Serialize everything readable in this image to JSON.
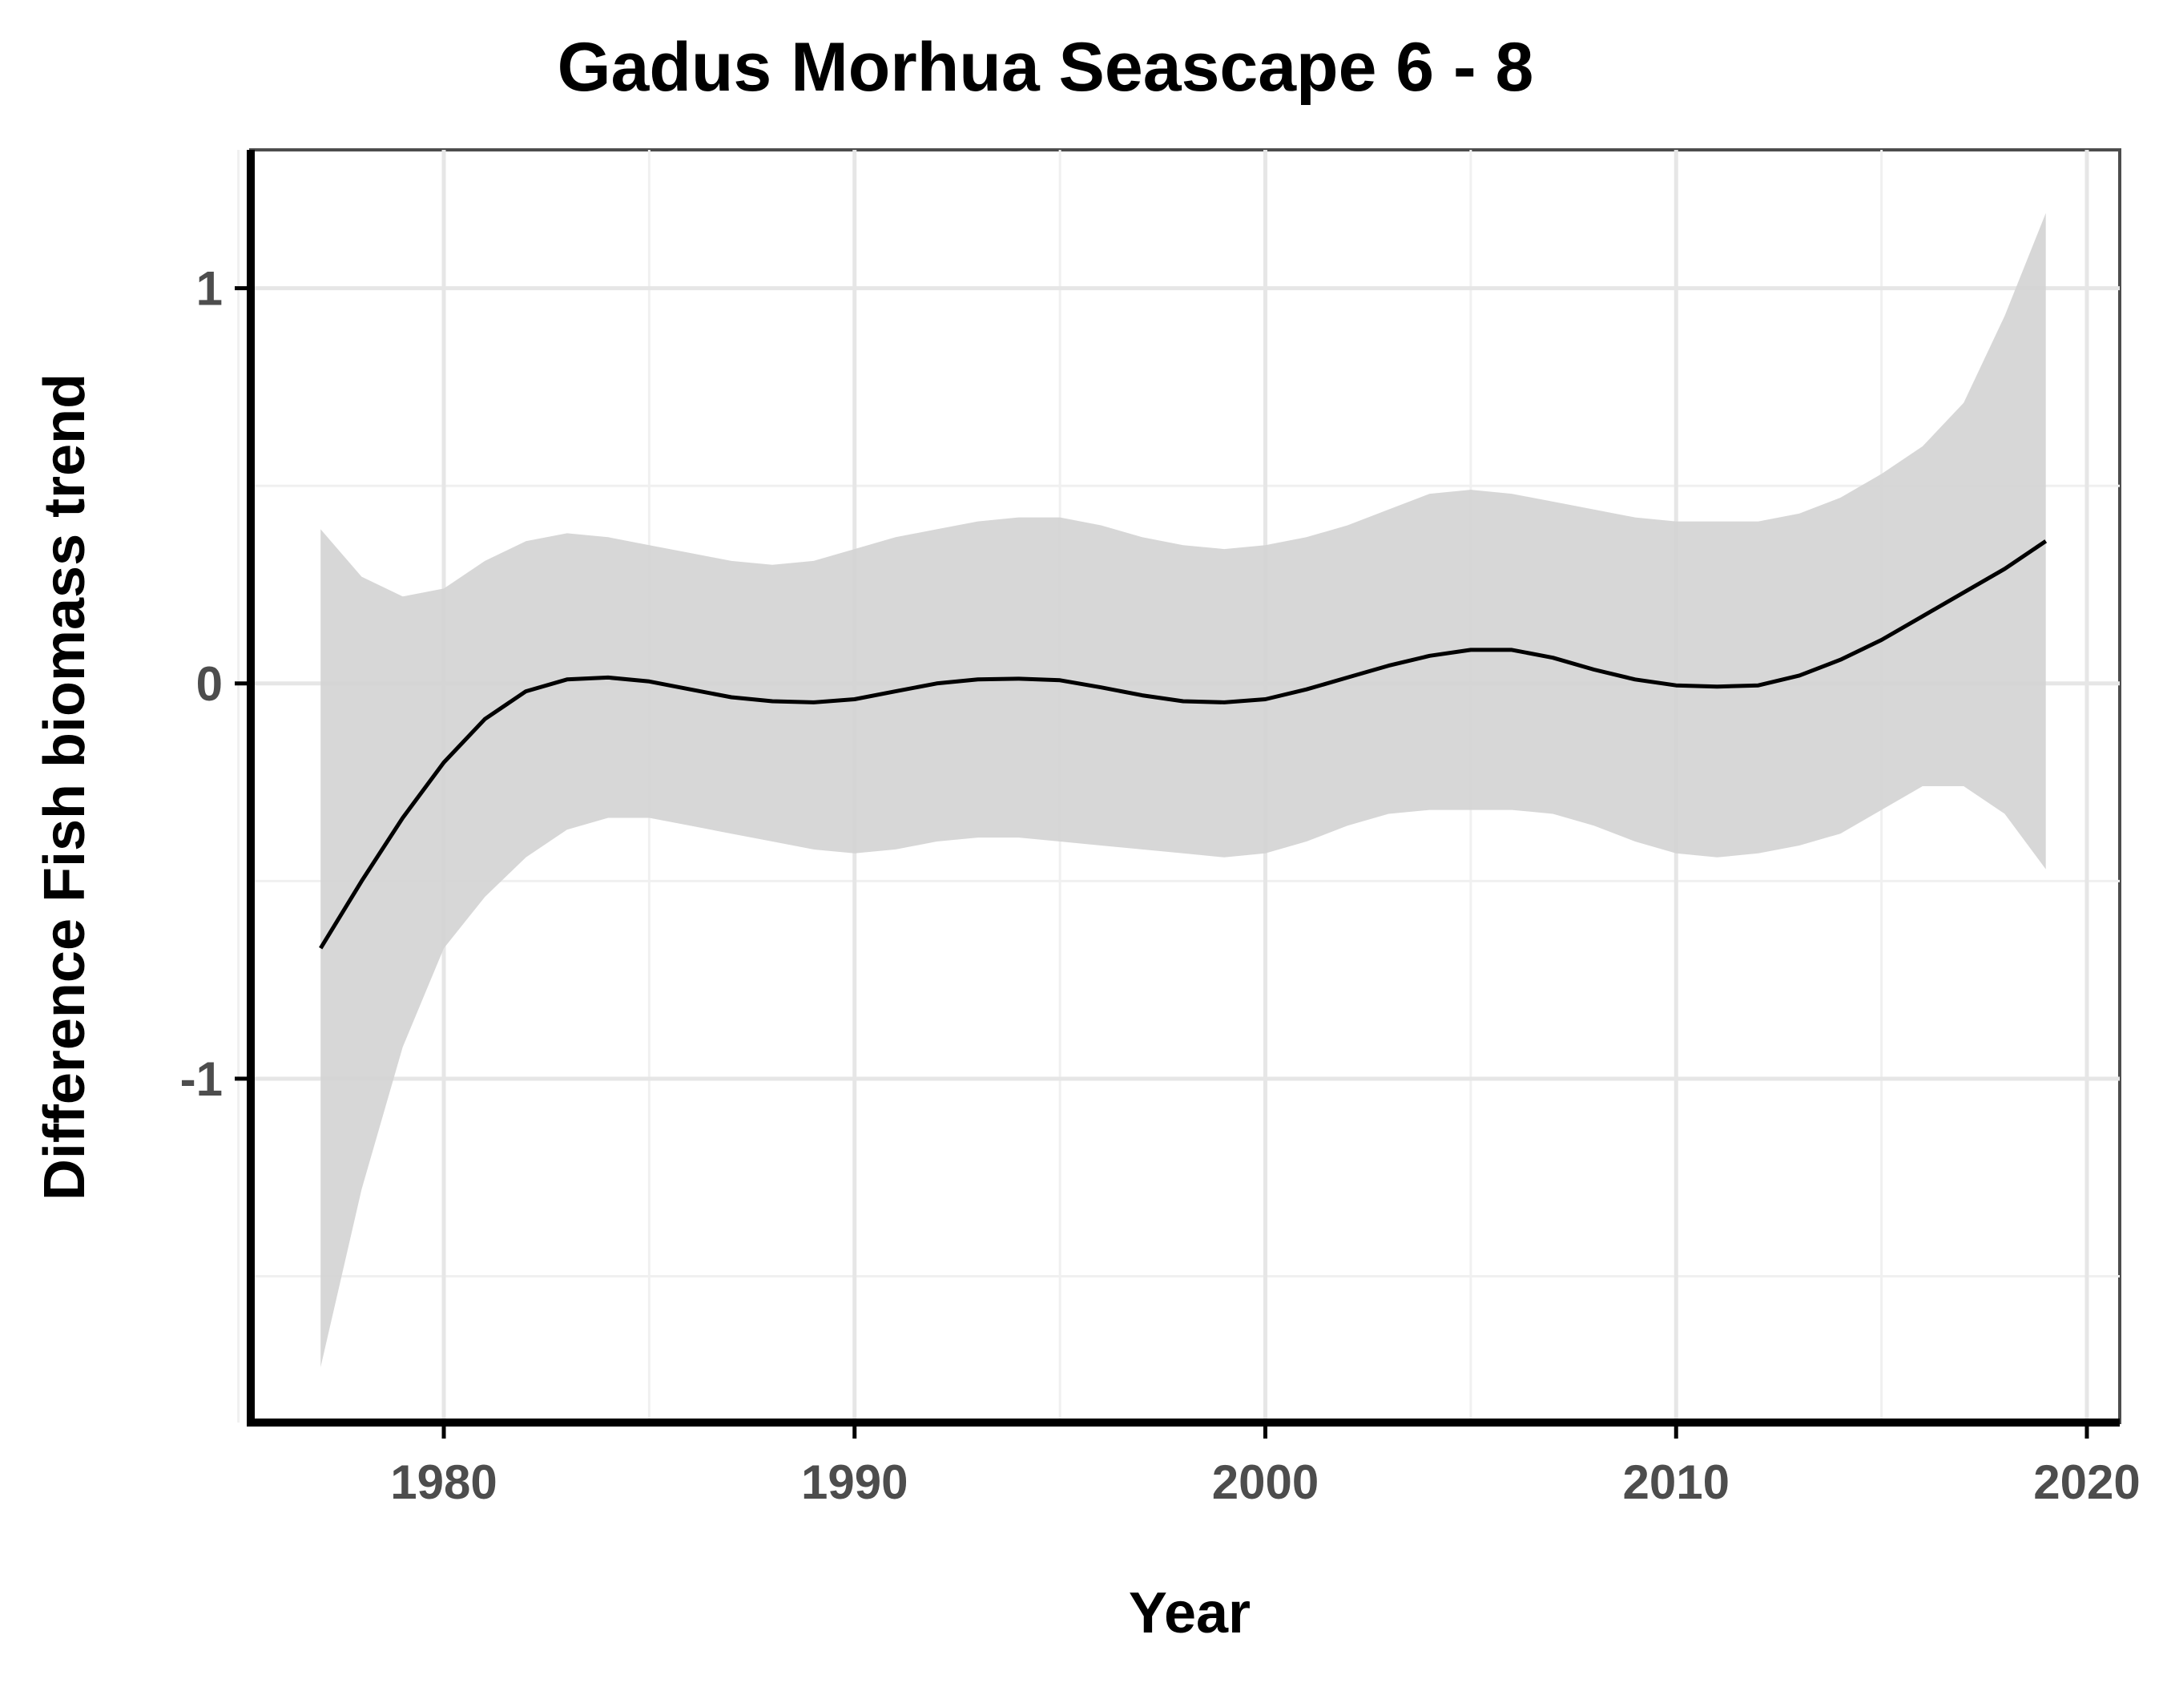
{
  "chart_data": {
    "type": "line",
    "title": "Gadus Morhua Seascape 6 - 8",
    "xlabel": "Year",
    "ylabel": "Difference Fish biomass trend",
    "xlim": [
      1975.3,
      2020.8
    ],
    "ylim": [
      -1.87,
      1.35
    ],
    "x_ticks": [
      1980,
      1990,
      2000,
      2010,
      2020
    ],
    "x_tick_labels": [
      "1980",
      "1990",
      "2000",
      "2010",
      "2020"
    ],
    "y_ticks": [
      -1,
      0,
      1
    ],
    "y_tick_labels": [
      "-1",
      "0",
      "1"
    ],
    "x_minor_ticks": [
      1975,
      1985,
      1995,
      2005,
      2015
    ],
    "y_minor_ticks": [
      -1.5,
      -0.5,
      0.5
    ],
    "grid": true,
    "series": [
      {
        "x": [
          1977,
          1978,
          1979,
          1980,
          1981,
          1982,
          1983,
          1984,
          1985,
          1986,
          1987,
          1988,
          1989,
          1990,
          1991,
          1992,
          1993,
          1994,
          1995,
          1996,
          1997,
          1998,
          1999,
          2000,
          2001,
          2002,
          2003,
          2004,
          2005,
          2006,
          2007,
          2008,
          2009,
          2010,
          2011,
          2012,
          2013,
          2014,
          2015,
          2016,
          2017,
          2018,
          2019
        ],
        "values": [
          -0.67,
          -0.5,
          -0.34,
          -0.2,
          -0.09,
          -0.02,
          0.01,
          0.015,
          0.005,
          -0.015,
          -0.035,
          -0.045,
          -0.048,
          -0.04,
          -0.02,
          0.0,
          0.01,
          0.012,
          0.008,
          -0.01,
          -0.03,
          -0.045,
          -0.048,
          -0.04,
          -0.015,
          0.015,
          0.045,
          0.07,
          0.085,
          0.085,
          0.065,
          0.035,
          0.01,
          -0.005,
          -0.008,
          -0.005,
          0.02,
          0.06,
          0.11,
          0.17,
          0.23,
          0.29,
          0.36
        ],
        "ci_upper": [
          0.39,
          0.27,
          0.22,
          0.24,
          0.31,
          0.36,
          0.38,
          0.37,
          0.35,
          0.33,
          0.31,
          0.3,
          0.31,
          0.34,
          0.37,
          0.39,
          0.41,
          0.42,
          0.42,
          0.4,
          0.37,
          0.35,
          0.34,
          0.35,
          0.37,
          0.4,
          0.44,
          0.48,
          0.49,
          0.48,
          0.46,
          0.44,
          0.42,
          0.41,
          0.41,
          0.41,
          0.43,
          0.47,
          0.53,
          0.6,
          0.71,
          0.93,
          1.19
        ],
        "ci_lower": [
          -1.73,
          -1.28,
          -0.92,
          -0.67,
          -0.54,
          -0.44,
          -0.37,
          -0.34,
          -0.34,
          -0.36,
          -0.38,
          -0.4,
          -0.42,
          -0.43,
          -0.42,
          -0.4,
          -0.39,
          -0.39,
          -0.4,
          -0.41,
          -0.42,
          -0.43,
          -0.44,
          -0.43,
          -0.4,
          -0.36,
          -0.33,
          -0.32,
          -0.32,
          -0.32,
          -0.33,
          -0.36,
          -0.4,
          -0.43,
          -0.44,
          -0.43,
          -0.41,
          -0.38,
          -0.32,
          -0.26,
          -0.26,
          -0.33,
          -0.47
        ]
      }
    ],
    "colors": {
      "line": "#000000",
      "ribbon": "#d3d3d3",
      "grid_major": "#e6e6e6",
      "grid_minor": "#f0f0f0",
      "axis": "#000000",
      "tick_label": "#4d4d4d"
    }
  }
}
